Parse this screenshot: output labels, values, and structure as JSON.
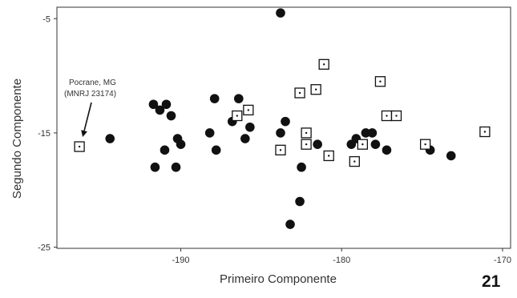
{
  "chart_data": {
    "type": "scatter",
    "title": "",
    "xlabel": "Primeiro Componente",
    "ylabel": "Segundo Componente",
    "xlim": [
      -197.7,
      -169.5
    ],
    "ylim": [
      -25.1,
      -4.0
    ],
    "x_ticks": [
      -190,
      -180,
      -170
    ],
    "x_tick_labels": [
      "-190",
      "-180",
      "-170"
    ],
    "y_ticks": [
      -5,
      -15,
      -25
    ],
    "y_tick_labels": [
      "-5",
      "-15",
      "-25"
    ],
    "grid": false,
    "legend": "none",
    "series": [
      {
        "marker": "filled-circle",
        "color": "#111111",
        "points": [
          [
            -194.4,
            -15.5
          ],
          [
            -191.7,
            -12.5
          ],
          [
            -190.9,
            -12.5
          ],
          [
            -191.3,
            -13.0
          ],
          [
            -190.6,
            -13.5
          ],
          [
            -191.6,
            -18.0
          ],
          [
            -191.0,
            -16.5
          ],
          [
            -190.2,
            -15.5
          ],
          [
            -190.0,
            -16.0
          ],
          [
            -190.3,
            -18.0
          ],
          [
            -188.2,
            -15.0
          ],
          [
            -187.8,
            -16.5
          ],
          [
            -187.9,
            -12.0
          ],
          [
            -186.8,
            -14.0
          ],
          [
            -186.4,
            -12.0
          ],
          [
            -186.0,
            -15.5
          ],
          [
            -185.7,
            -14.5
          ],
          [
            -183.8,
            -4.5
          ],
          [
            -183.5,
            -14.0
          ],
          [
            -183.8,
            -15.0
          ],
          [
            -183.2,
            -23.0
          ],
          [
            -182.5,
            -18.0
          ],
          [
            -182.6,
            -21.0
          ],
          [
            -181.5,
            -16.0
          ],
          [
            -179.4,
            -16.0
          ],
          [
            -179.1,
            -15.5
          ],
          [
            -178.5,
            -15.0
          ],
          [
            -178.1,
            -15.0
          ],
          [
            -177.9,
            -16.0
          ],
          [
            -177.2,
            -16.5
          ],
          [
            -174.5,
            -16.5
          ],
          [
            -173.2,
            -17.0
          ]
        ]
      },
      {
        "marker": "dotted-square",
        "color": "#111111",
        "points": [
          [
            -196.3,
            -16.2
          ],
          [
            -186.5,
            -13.5
          ],
          [
            -185.8,
            -13.0
          ],
          [
            -183.8,
            -16.5
          ],
          [
            -182.6,
            -11.5
          ],
          [
            -182.2,
            -16.0
          ],
          [
            -182.2,
            -15.0
          ],
          [
            -181.6,
            -11.2
          ],
          [
            -181.1,
            -9.0
          ],
          [
            -180.8,
            -17.0
          ],
          [
            -179.2,
            -17.5
          ],
          [
            -178.7,
            -16.0
          ],
          [
            -177.6,
            -10.5
          ],
          [
            -177.2,
            -13.5
          ],
          [
            -176.6,
            -13.5
          ],
          [
            -174.8,
            -16.0
          ],
          [
            -171.1,
            -14.9
          ]
        ]
      }
    ],
    "annotations": [
      {
        "lines": [
          "Pocrane, MG",
          "(MNRJ 23174)"
        ],
        "points_to": [
          -196.3,
          -16.2
        ]
      }
    ]
  },
  "page_number": "21"
}
